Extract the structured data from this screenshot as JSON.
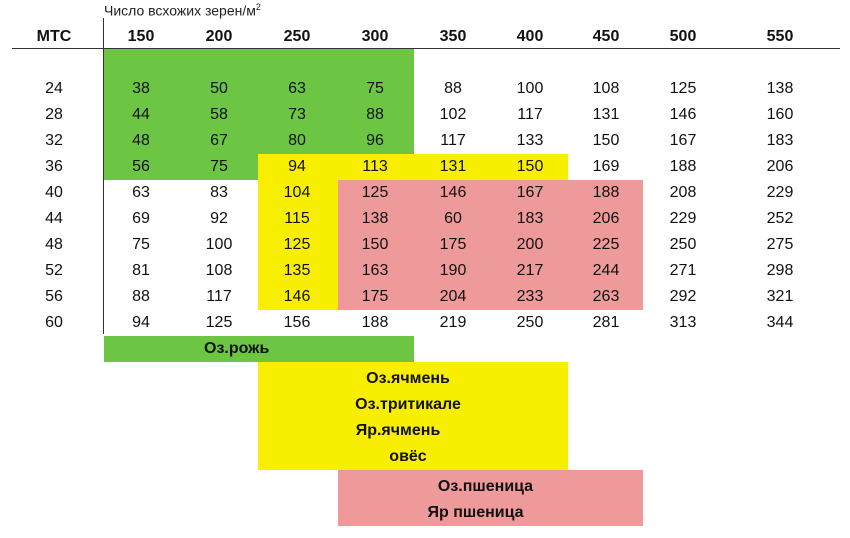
{
  "header": {
    "caption": "Число всхожих зерен/м",
    "caption_sup": "2",
    "row_header": "МТС",
    "columns": [
      "150",
      "200",
      "250",
      "300",
      "350",
      "400",
      "450",
      "500",
      "550"
    ]
  },
  "rows": [
    {
      "mtc": "24",
      "values": [
        "38",
        "50",
        "63",
        "75",
        "88",
        "100",
        "108",
        "125",
        "138"
      ]
    },
    {
      "mtc": "28",
      "values": [
        "44",
        "58",
        "73",
        "88",
        "102",
        "117",
        "131",
        "146",
        "160"
      ]
    },
    {
      "mtc": "32",
      "values": [
        "48",
        "67",
        "80",
        "96",
        "117",
        "133",
        "150",
        "167",
        "183"
      ]
    },
    {
      "mtc": "36",
      "values": [
        "56",
        "75",
        "94",
        "113",
        "131",
        "150",
        "169",
        "188",
        "206"
      ]
    },
    {
      "mtc": "40",
      "values": [
        "63",
        "83",
        "104",
        "125",
        "146",
        "167",
        "188",
        "208",
        "229"
      ]
    },
    {
      "mtc": "44",
      "values": [
        "69",
        "92",
        "115",
        "138",
        "60",
        "183",
        "206",
        "229",
        "252"
      ]
    },
    {
      "mtc": "48",
      "values": [
        "75",
        "100",
        "125",
        "150",
        "175",
        "200",
        "225",
        "250",
        "275"
      ]
    },
    {
      "mtc": "52",
      "values": [
        "81",
        "108",
        "135",
        "163",
        "190",
        "217",
        "244",
        "271",
        "298"
      ]
    },
    {
      "mtc": "56",
      "values": [
        "88",
        "117",
        "146",
        "175",
        "204",
        "233",
        "263",
        "292",
        "321"
      ]
    },
    {
      "mtc": "60",
      "values": [
        "94",
        "125",
        "156",
        "188",
        "219",
        "250",
        "281",
        "313",
        "344"
      ]
    }
  ],
  "legend": {
    "green": [
      "Оз.рожь"
    ],
    "yellow": [
      "Оз.ячмень",
      "Оз.тритикале",
      "Яр.ячмень",
      "овёс"
    ],
    "pink": [
      "Оз.пшеница",
      "Яр пшеница"
    ]
  },
  "colors": {
    "green": "#6cc644",
    "yellow": "#f8ef00",
    "pink": "#ef9a9a"
  }
}
